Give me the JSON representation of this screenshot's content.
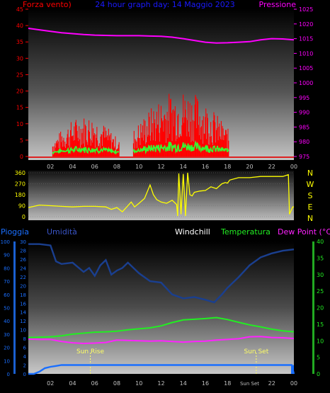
{
  "colors": {
    "wind": "#ff0000",
    "gust": "#33ff33",
    "pressure": "#ff00ff",
    "title": "#1a1aff",
    "direction": "#ffff00",
    "rain": "#1a6fff",
    "humidity": "#1a3f8f",
    "humidity_label": "#3a55c8",
    "temperature": "#22ee22",
    "dewpoint": "#ff22ff",
    "windchill": "#ffffff",
    "sunline": "#ffff66",
    "axis_light": "#c0c0c0"
  },
  "chart_data": [
    {
      "type": "bar",
      "title": "24 hour graph day: 14 Maggio 2023",
      "left_label": "Forza vento)",
      "right_label": "Pressione",
      "x_ticks": [
        "02",
        "04",
        "06",
        "08",
        "10",
        "12",
        "14",
        "16",
        "18",
        "20",
        "22",
        "00"
      ],
      "y_left_ticks": [
        "0",
        "5",
        "10",
        "15",
        "20",
        "25",
        "30",
        "35",
        "40",
        "45"
      ],
      "y_left_range": [
        0,
        45
      ],
      "y_right_ticks": [
        "975",
        "980",
        "985",
        "990",
        "995",
        "1000",
        "1005",
        "1010",
        "1015",
        "1020",
        "1025"
      ],
      "y_right_range": [
        975,
        1025
      ],
      "grid": false,
      "series": [
        {
          "id": "pressure",
          "x": [
            0,
            1,
            2,
            3,
            4,
            5,
            6,
            7,
            8,
            9,
            10,
            11,
            12,
            13,
            14,
            15,
            16,
            17,
            18,
            19,
            20,
            21,
            22,
            23,
            24
          ],
          "values": [
            1018.5,
            1018,
            1017.5,
            1017,
            1016.7,
            1016.4,
            1016.2,
            1016.1,
            1016,
            1016,
            1016,
            1015.9,
            1015.8,
            1015.5,
            1015,
            1014.4,
            1013.8,
            1013.5,
            1013.6,
            1013.8,
            1014,
            1014.6,
            1015,
            1014.9,
            1014.6
          ]
        },
        {
          "id": "wind",
          "segments": [
            {
              "from": 2.2,
              "to": 8.2,
              "peak": 11
            },
            {
              "from": 9.5,
              "to": 18.1,
              "peak": 18
            }
          ]
        }
      ]
    },
    {
      "type": "line",
      "right_letters": [
        "N",
        "W",
        "S",
        "E",
        "N"
      ],
      "y_ticks": [
        "0",
        "90",
        "180",
        "270",
        "360"
      ],
      "y_range": [
        0,
        360
      ],
      "series": [
        {
          "id": "direction",
          "x": [
            0,
            1,
            2,
            3,
            4,
            5,
            6,
            7,
            7.5,
            8,
            8.5,
            9,
            9.3,
            9.6,
            10,
            10.5,
            11,
            11.3,
            11.6,
            12,
            12.5,
            13,
            13.4,
            13.5,
            13.6,
            13.8,
            14,
            14.2,
            14.4,
            14.6,
            14.8,
            15,
            15.5,
            16,
            16.5,
            17,
            17.5,
            17.8,
            18,
            18.2,
            19,
            20,
            21,
            22,
            23,
            23.5,
            23.6,
            23.9,
            24
          ],
          "values": [
            75,
            95,
            90,
            85,
            80,
            85,
            85,
            80,
            60,
            75,
            40,
            90,
            120,
            80,
            110,
            150,
            260,
            180,
            140,
            120,
            110,
            135,
            100,
            5,
            355,
            20,
            350,
            5,
            360,
            180,
            170,
            200,
            210,
            215,
            245,
            230,
            270,
            280,
            275,
            300,
            320,
            320,
            330,
            330,
            330,
            345,
            20,
            80,
            80
          ]
        }
      ]
    },
    {
      "type": "line",
      "left_label": "Pioggia",
      "humidity_label": "Umidità",
      "windchill_label": "Windchill",
      "temp_label": "Temperatura",
      "dew_label": "Dew Point (°C)",
      "x_ticks": [
        "02",
        "04",
        "06",
        "08",
        "10",
        "12",
        "14",
        "16",
        "18",
        "Sun Set",
        "22",
        "00"
      ],
      "y_humidity_ticks": [
        "0",
        "10",
        "20",
        "30",
        "40",
        "50",
        "60",
        "70",
        "80",
        "90",
        "100"
      ],
      "y_rain_ticks": [
        "0",
        "2",
        "4",
        "6",
        "8",
        "10",
        "12",
        "14",
        "16",
        "18",
        "20",
        "22",
        "24",
        "26",
        "28",
        "30"
      ],
      "y_temp_ticks": [
        "0",
        "5",
        "10",
        "15",
        "20",
        "25",
        "30",
        "35",
        "40"
      ],
      "y_temp_range": [
        0,
        40
      ],
      "sun_rise_label": "Sun Rise",
      "sun_set_label": "Sun Set",
      "sun_rise_hour": 5.6,
      "sun_set_hour": 20.6,
      "series": [
        {
          "id": "humidity",
          "x": [
            0,
            1,
            2,
            2.5,
            3,
            4,
            5,
            5.5,
            6,
            6.5,
            7,
            7.5,
            8,
            8.5,
            9,
            10,
            11,
            12,
            13,
            14,
            15,
            16,
            16.8,
            17.5,
            18,
            19,
            20,
            21,
            22,
            23,
            24
          ],
          "values": [
            98,
            98,
            97,
            85,
            83,
            84,
            77,
            80,
            74,
            82,
            86,
            75,
            78,
            80,
            84,
            76,
            70,
            69,
            60,
            57,
            58,
            56,
            54,
            60,
            65,
            73,
            82,
            88,
            91,
            93,
            94
          ]
        },
        {
          "id": "temperature",
          "x": [
            0,
            2,
            3,
            4,
            5,
            6,
            7,
            8,
            9,
            10,
            11,
            12,
            13,
            14,
            15,
            16,
            17,
            18,
            19,
            20,
            21,
            22,
            23,
            24
          ],
          "values": [
            11,
            11.2,
            11.5,
            12,
            12.3,
            12.6,
            12.7,
            12.9,
            13.3,
            13.6,
            13.9,
            14.5,
            15.5,
            16.3,
            16.5,
            16.7,
            17,
            16.4,
            15.6,
            14.8,
            14.2,
            13.5,
            13,
            12.7
          ]
        },
        {
          "id": "dewpoint",
          "x": [
            0,
            1,
            2,
            3,
            4,
            5,
            6,
            7,
            8,
            9,
            10,
            11,
            12,
            13,
            14,
            15,
            16,
            17,
            18,
            19,
            20,
            21,
            22,
            23,
            24
          ],
          "values": [
            10.5,
            10.4,
            10.4,
            9.8,
            9.4,
            9.2,
            9.3,
            9.5,
            10.2,
            10.1,
            10,
            9.9,
            10,
            9.8,
            9.6,
            9.8,
            9.9,
            10.2,
            10.4,
            10.6,
            11.2,
            11.3,
            11,
            10.9,
            10.7
          ]
        },
        {
          "id": "rain",
          "x": [
            0,
            0.5,
            1,
            1.5,
            2,
            2.5,
            3,
            23.8,
            24
          ],
          "values": [
            0,
            0,
            0.5,
            1.3,
            1.6,
            1.8,
            2,
            2,
            0
          ]
        }
      ]
    }
  ]
}
